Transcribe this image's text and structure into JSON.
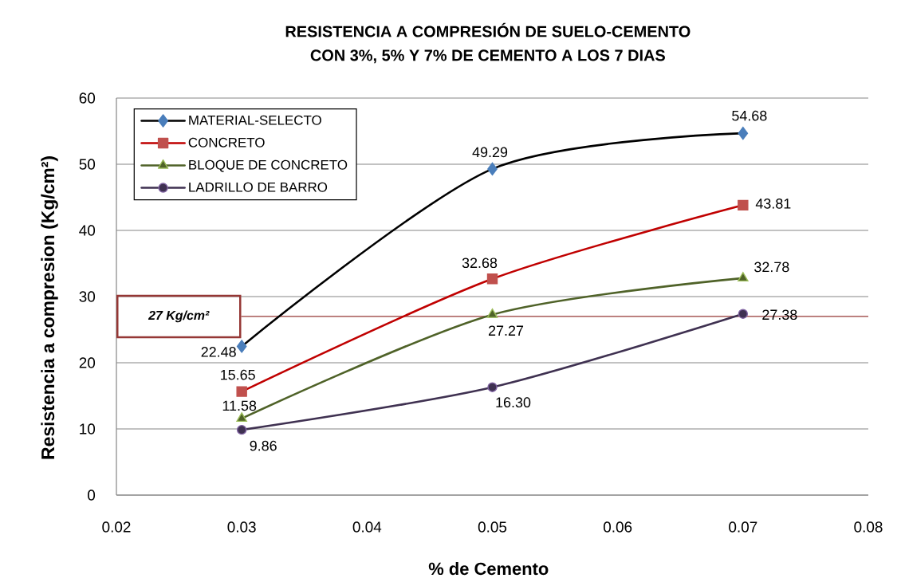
{
  "chart_data": {
    "type": "line",
    "title": "RESISTENCIA A COMPRESIÓN DE SUELO-CEMENTO",
    "subtitle": "CON 3%, 5% Y 7% DE CEMENTO A LOS 7 DIAS",
    "xlabel": "% de Cemento",
    "ylabel": "Resistencia a compresion (Kg/cm²)",
    "x": [
      0.03,
      0.05,
      0.07
    ],
    "series": [
      {
        "name": "MATERIAL-SELECTO",
        "color": "#000000",
        "colors": [
          "#4a7ebb",
          "#4a7ebb",
          "#4a7ebb"
        ],
        "marker": "diamond",
        "values": [
          22.48,
          49.29,
          54.68
        ],
        "value_labels": [
          "22.48",
          "49.29",
          "54.68"
        ]
      },
      {
        "name": "CONCRETO",
        "color": "#c00000",
        "colors": [
          "#c0504d",
          "#c0504d",
          "#c0504d"
        ],
        "marker": "square",
        "values": [
          15.65,
          32.68,
          43.81
        ],
        "value_labels": [
          "15.65",
          "32.68",
          "43.81"
        ]
      },
      {
        "name": "BLOQUE DE CONCRETO",
        "color": "#4f6228",
        "colors": [
          "#9bbb59",
          "#9bbb59",
          "#9bbb59"
        ],
        "marker": "triangle",
        "values": [
          11.58,
          27.27,
          32.78
        ],
        "value_labels": [
          "11.58",
          "27.27",
          "32.78"
        ]
      },
      {
        "name": "LADRILLO DE BARRO",
        "color": "#3f3151",
        "colors": [
          "#8064a2",
          "#8064a2",
          "#8064a2"
        ],
        "marker": "circle",
        "values": [
          9.86,
          16.3,
          27.38
        ],
        "value_labels": [
          "9.86",
          "16.30",
          "27.38"
        ]
      }
    ],
    "xlim": [
      0.02,
      0.08
    ],
    "xticks": [
      0.02,
      0.03,
      0.04,
      0.05,
      0.06,
      0.07,
      0.08
    ],
    "ylim": [
      0,
      60
    ],
    "yticks": [
      0,
      10,
      20,
      30,
      40,
      50,
      60
    ],
    "grid": "y",
    "legend": "top left",
    "ref_lines": [
      {
        "axis": "y",
        "value": 27,
        "label": "27 Kg/cm²",
        "color": "#953735"
      }
    ]
  }
}
